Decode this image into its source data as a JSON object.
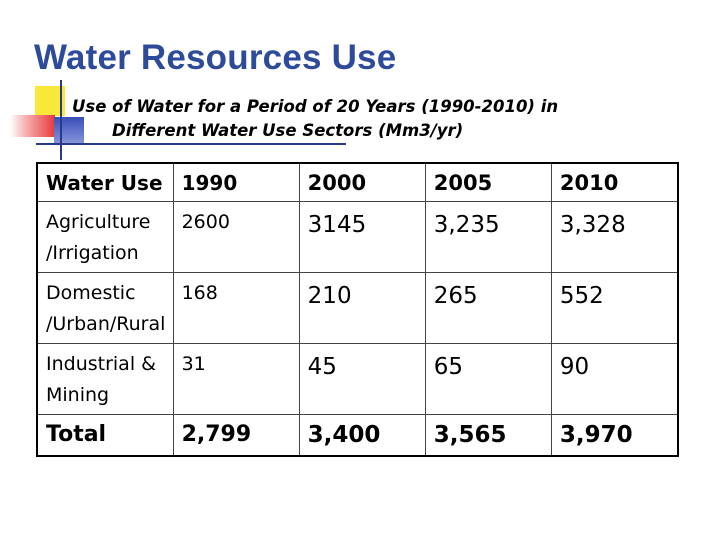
{
  "title": "Water Resources Use",
  "subtitle": {
    "line1": "Use of Water for a Period of 20 Years (1990-2010) in",
    "line2": "Different Water Use Sectors (Mm3/yr)"
  },
  "table": {
    "header": [
      "Water Use",
      "1990",
      "2000",
      "2005",
      "2010"
    ],
    "rows": [
      [
        "Agriculture /Irrigation",
        "2600",
        "3145",
        "3,235",
        "3,328"
      ],
      [
        "Domestic /Urban/Rural",
        "168",
        "210",
        "265",
        "552"
      ],
      [
        "Industrial & Mining",
        "31",
        "45",
        "65",
        "90"
      ]
    ],
    "total": [
      "Total",
      "2,799",
      "3,400",
      "3,565",
      "3,970"
    ]
  }
}
